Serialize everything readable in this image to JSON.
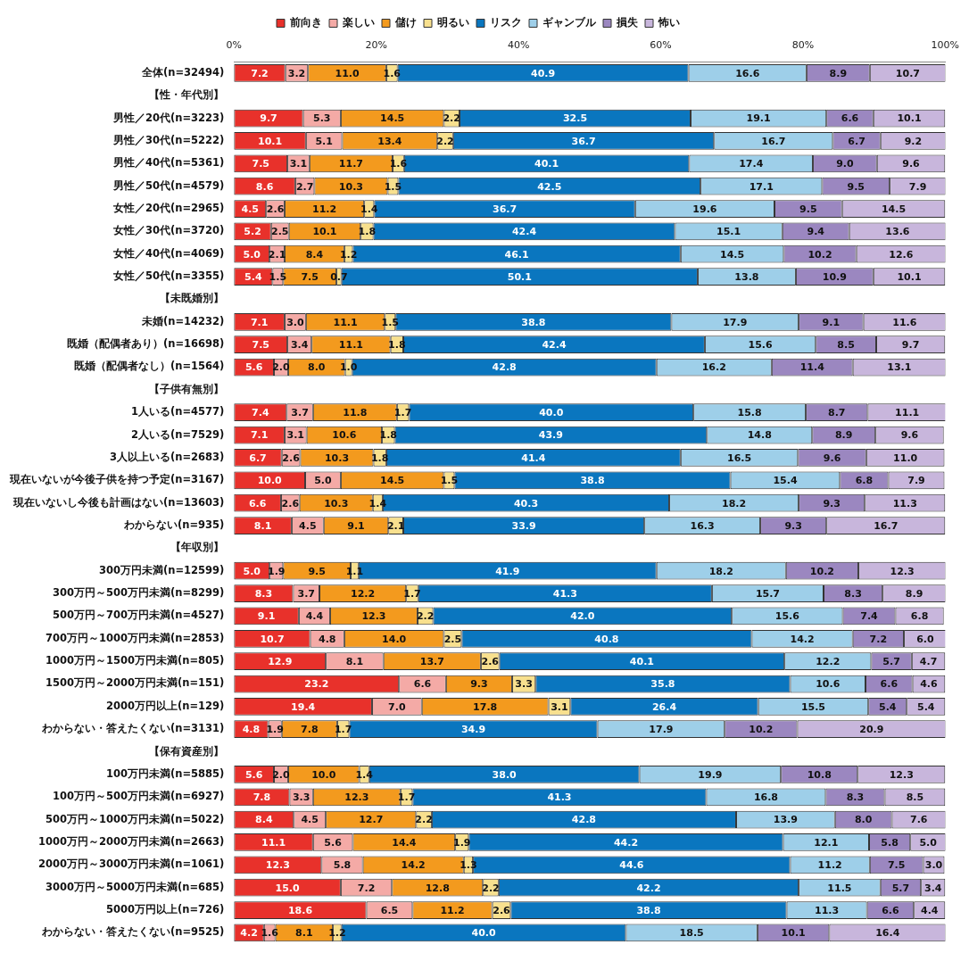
{
  "chart_data": {
    "type": "bar",
    "orientation": "horizontal",
    "stacked": true,
    "legend": "top",
    "grid": false,
    "categories": [
      "全体(n=32494)",
      "【性・年代別】",
      "男性／20代(n=3223)",
      "男性／30代(n=5222)",
      "男性／40代(n=5361)",
      "男性／50代(n=4579)",
      "女性／20代(n=2965)",
      "女性／30代(n=3720)",
      "女性／40代(n=4069)",
      "女性／50代(n=3355)",
      "【未既婚別】",
      "未婚(n=14232)",
      "既婚（配偶者あり）(n=16698)",
      "既婚（配偶者なし）(n=1564)",
      "【子供有無別】",
      "1人いる(n=4577)",
      "2人いる(n=7529)",
      "3人以上いる(n=2683)",
      "現在いないが今後子供を持つ予定(n=3167)",
      "現在いないし今後も計画はない(n=13603)",
      "わからない(n=935)",
      "【年収別】",
      "300万円未満(n=12599)",
      "300万円～500万円未満(n=8299)",
      "500万円～700万円未満(n=4527)",
      "700万円～1000万円未満(n=2853)",
      "1000万円～1500万円未満(n=805)",
      "1500万円～2000万円未満(n=151)",
      "2000万円以上(n=129)",
      "わからない・答えたくない(n=3131)",
      "【保有資産別】",
      "100万円未満(n=5885)",
      "100万円～500万円未満(n=6927)",
      "500万円～1000万円未満(n=5022)",
      "1000万円～2000万円未満(n=2663)",
      "2000万円～3000万円未満(n=1061)",
      "3000万円～5000万円未満(n=685)",
      "5000万円以上(n=726)",
      "わからない・答えたくない(n=9525)"
    ],
    "xlim": [
      0,
      100
    ],
    "xticks": [
      {
        "value": 0,
        "label": "0%"
      },
      {
        "value": 20,
        "label": "20%"
      },
      {
        "value": 40,
        "label": "40%"
      },
      {
        "value": 60,
        "label": "60%"
      },
      {
        "value": 80,
        "label": "80%"
      },
      {
        "value": 100,
        "label": "100%"
      }
    ],
    "series": [
      {
        "name": "前向き",
        "color": "#e8312b",
        "values": [
          7.2,
          null,
          9.7,
          10.1,
          7.5,
          8.6,
          4.5,
          5.2,
          5.0,
          5.4,
          null,
          7.1,
          7.5,
          5.6,
          null,
          7.4,
          7.1,
          6.7,
          10.0,
          6.6,
          8.1,
          null,
          5.0,
          8.3,
          9.1,
          10.7,
          12.9,
          23.2,
          19.4,
          4.8,
          null,
          5.6,
          7.8,
          8.4,
          11.1,
          12.3,
          15.0,
          18.6,
          4.2
        ],
        "value_labels": [
          "7.2",
          null,
          "9.7",
          "10.1",
          "7.5",
          "8.6",
          "4.5",
          "5.2",
          "5.0",
          "5.4",
          null,
          "7.1",
          "7.5",
          "5.6",
          null,
          "7.4",
          "7.1",
          "6.7",
          "10.0",
          "6.6",
          "8.1",
          null,
          "5.0",
          "8.3",
          "9.1",
          "10.7",
          "12.9",
          "23.2",
          "19.4",
          "4.8",
          null,
          "5.6",
          "7.8",
          "8.4",
          "11.1",
          "12.3",
          "15.0",
          "18.6",
          "4.2"
        ]
      },
      {
        "name": "楽しい",
        "color": "#f4aaa6",
        "values": [
          3.2,
          null,
          5.3,
          5.1,
          3.1,
          2.7,
          2.6,
          2.5,
          2.1,
          1.5,
          null,
          3.0,
          3.4,
          2.0,
          null,
          3.7,
          3.1,
          2.6,
          5.0,
          2.6,
          4.5,
          null,
          1.9,
          3.7,
          4.4,
          4.8,
          8.1,
          6.6,
          7.0,
          1.9,
          null,
          2.0,
          3.3,
          4.5,
          5.6,
          5.8,
          7.2,
          6.5,
          1.6
        ],
        "value_labels": [
          "3.2",
          null,
          "5.3",
          "5.1",
          "3.1",
          "2.7",
          "2.6",
          "2.5",
          "2.1",
          "1.5",
          null,
          "3.0",
          "3.4",
          "2.0",
          null,
          "3.7",
          "3.1",
          "2.6",
          "5.0",
          "2.6",
          "4.5",
          null,
          "1.9",
          "3.7",
          "4.4",
          "4.8",
          "8.1",
          "6.6",
          "7.0",
          "1.9",
          null,
          "2.0",
          "3.3",
          "4.5",
          "5.6",
          "5.8",
          "7.2",
          "6.5",
          "1.6"
        ]
      },
      {
        "name": "儲け",
        "color": "#f39a1e",
        "values": [
          11.0,
          null,
          14.5,
          13.4,
          11.7,
          10.3,
          11.2,
          10.1,
          8.4,
          7.5,
          null,
          11.1,
          11.1,
          8.0,
          null,
          11.8,
          10.6,
          10.3,
          14.5,
          10.3,
          9.1,
          null,
          9.5,
          12.2,
          12.3,
          14.0,
          13.7,
          9.3,
          17.8,
          7.8,
          null,
          10.0,
          12.3,
          12.7,
          14.4,
          14.2,
          12.8,
          11.2,
          8.1
        ],
        "value_labels": [
          "11.0",
          null,
          "14.5",
          "13.4",
          "11.7",
          "10.3",
          "11.2",
          "10.1",
          "8.4",
          "7.5",
          null,
          "11.1",
          "11.1",
          "8.0",
          null,
          "11.8",
          "10.6",
          "10.3",
          "14.5",
          "10.3",
          "9.1",
          null,
          "9.5",
          "12.2",
          "12.3",
          "14.0",
          "13.7",
          "9.3",
          "17.8",
          "7.8",
          null,
          "10.0",
          "12.3",
          "12.7",
          "14.4",
          "14.2",
          "12.8",
          "11.2",
          "8.1"
        ]
      },
      {
        "name": "明るい",
        "color": "#f8e08e",
        "values": [
          1.6,
          null,
          2.2,
          2.2,
          1.6,
          1.5,
          1.4,
          1.8,
          1.2,
          0.7,
          null,
          1.5,
          1.8,
          1.0,
          null,
          1.7,
          1.8,
          1.8,
          1.5,
          1.4,
          2.1,
          null,
          1.1,
          1.7,
          2.2,
          2.5,
          2.6,
          3.3,
          3.1,
          1.7,
          null,
          1.4,
          1.7,
          2.2,
          1.9,
          1.3,
          2.2,
          2.6,
          1.2
        ],
        "value_labels": [
          "1.6",
          null,
          "2.2",
          "2.2",
          "1.6",
          "1.5",
          "1.4",
          "1.8",
          "1.2",
          "0.7",
          null,
          "1.5",
          "1.8",
          "1.0",
          null,
          "1.7",
          "1.8",
          "1.8",
          "1.5",
          "1.4",
          "2.1",
          null,
          "1.1",
          "1.7",
          "2.2",
          "2.5",
          "2.6",
          "3.3",
          "3.1",
          "1.7",
          null,
          "1.4",
          "1.7",
          "2.2",
          "1.9",
          "1.3",
          "2.2",
          "2.6",
          "1.2"
        ]
      },
      {
        "name": "リスク",
        "color": "#0a76bf",
        "values": [
          40.9,
          null,
          32.5,
          36.7,
          40.1,
          42.5,
          36.7,
          42.4,
          46.1,
          50.1,
          null,
          38.8,
          42.4,
          42.8,
          null,
          40.0,
          43.9,
          41.4,
          38.8,
          40.3,
          33.9,
          null,
          41.9,
          41.3,
          42.0,
          40.8,
          40.1,
          35.8,
          26.4,
          34.9,
          null,
          38.0,
          41.3,
          42.8,
          44.2,
          44.6,
          42.2,
          38.8,
          40.0
        ],
        "value_labels": [
          "40.9",
          null,
          "32.5",
          "36.7",
          "40.1",
          "42.5",
          "36.7",
          "42.4",
          "46.1",
          "50.1",
          null,
          "38.8",
          "42.4",
          "42.8",
          null,
          "40.0",
          "43.9",
          "41.4",
          "38.8",
          "40.3",
          "33.9",
          null,
          "41.9",
          "41.3",
          "42.0",
          "40.8",
          "40.1",
          "35.8",
          "26.4",
          "34.9",
          null,
          "38.0",
          "41.3",
          "42.8",
          "44.2",
          "44.6",
          "42.2",
          "38.8",
          "40.0"
        ]
      },
      {
        "name": "ギャンブル",
        "color": "#9ecfe9",
        "values": [
          16.6,
          null,
          19.1,
          16.7,
          17.4,
          17.1,
          19.6,
          15.1,
          14.5,
          13.8,
          null,
          17.9,
          15.6,
          16.2,
          null,
          15.8,
          14.8,
          16.5,
          15.4,
          18.2,
          16.3,
          null,
          18.2,
          15.7,
          15.6,
          14.2,
          12.2,
          10.6,
          15.5,
          17.9,
          null,
          19.9,
          16.8,
          13.9,
          12.1,
          11.2,
          11.5,
          11.3,
          18.5
        ],
        "value_labels": [
          "16.6",
          null,
          "19.1",
          "16.7",
          "17.4",
          "17.1",
          "19.6",
          "15.1",
          "14.5",
          "13.8",
          null,
          "17.9",
          "15.6",
          "16.2",
          null,
          "15.8",
          "14.8",
          "16.5",
          "15.4",
          "18.2",
          "16.3",
          null,
          "18.2",
          "15.7",
          "15.6",
          "14.2",
          "12.2",
          "10.6",
          "15.5",
          "17.9",
          null,
          "19.9",
          "16.8",
          "13.9",
          "12.1",
          "11.2",
          "11.5",
          "11.3",
          "18.5"
        ]
      },
      {
        "name": "損失",
        "color": "#9b87c0",
        "values": [
          8.9,
          null,
          6.6,
          6.7,
          9.0,
          9.5,
          9.5,
          9.4,
          10.2,
          10.9,
          null,
          9.1,
          8.5,
          11.4,
          null,
          8.7,
          8.9,
          9.6,
          6.8,
          9.3,
          9.3,
          null,
          10.2,
          8.3,
          7.4,
          7.2,
          5.7,
          6.6,
          5.4,
          10.2,
          null,
          10.8,
          8.3,
          8.0,
          5.8,
          7.5,
          5.7,
          6.6,
          10.1
        ],
        "value_labels": [
          "8.9",
          null,
          "6.6",
          "6.7",
          "9.0",
          "9.5",
          "9.5",
          "9.4",
          "10.2",
          "10.9",
          null,
          "9.1",
          "8.5",
          "11.4",
          null,
          "8.7",
          "8.9",
          "9.6",
          "6.8",
          "9.3",
          "9.3",
          null,
          "10.2",
          "8.3",
          "7.4",
          "7.2",
          "5.7",
          "6.6",
          "5.4",
          "10.2",
          null,
          "10.8",
          "8.3",
          "8.0",
          "5.8",
          "7.5",
          "5.7",
          "6.6",
          "10.1"
        ]
      },
      {
        "name": "怖い",
        "color": "#c8b6dc",
        "values": [
          10.7,
          null,
          10.1,
          9.2,
          9.6,
          7.9,
          14.5,
          13.6,
          12.6,
          10.1,
          null,
          11.6,
          9.7,
          13.1,
          null,
          11.1,
          9.6,
          11.0,
          7.9,
          11.3,
          16.7,
          null,
          12.3,
          8.9,
          6.8,
          6.0,
          4.7,
          4.6,
          5.4,
          20.9,
          null,
          12.3,
          8.5,
          7.6,
          5.0,
          3.0,
          3.4,
          4.4,
          16.4
        ],
        "value_labels": [
          "10.7",
          null,
          "10.1",
          "9.2",
          "9.6",
          "7.9",
          "14.5",
          "13.6",
          "12.6",
          "10.1",
          null,
          "11.6",
          "9.7",
          "13.1",
          null,
          "11.1",
          "9.6",
          "11.0",
          "7.9",
          "11.3",
          "16.7",
          null,
          "12.3",
          "8.9",
          "6.8",
          "6.0",
          "4.7",
          "4.6",
          "5.4",
          "20.9",
          null,
          "12.3",
          "8.5",
          "7.6",
          "5.0",
          "3.0",
          "3.4",
          "4.4",
          "16.4"
        ]
      }
    ]
  }
}
